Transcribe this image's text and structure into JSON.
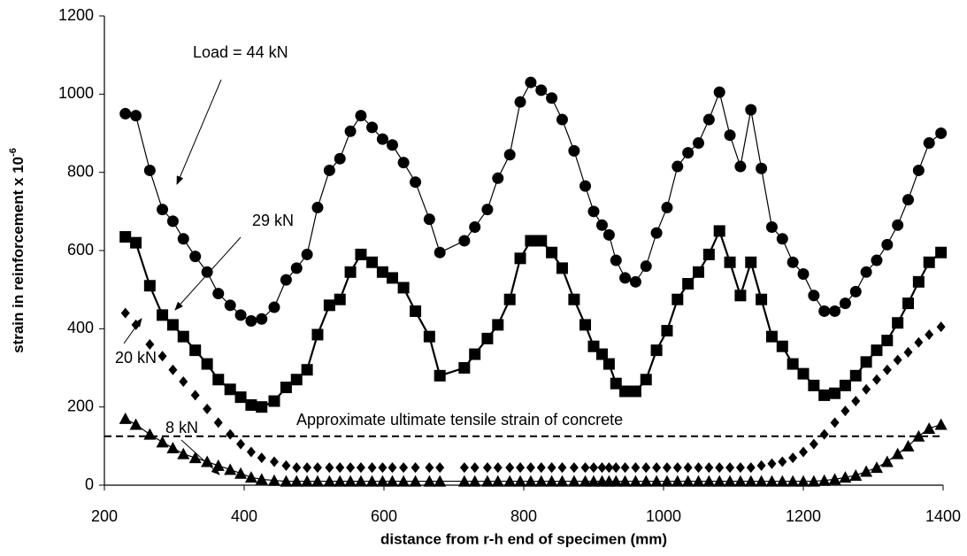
{
  "chart_data": {
    "type": "scatter",
    "x_label": "distance from r-h end of specimen (mm)",
    "y_label": "strain in reinforcement x 10",
    "y_label_superscript": "-6",
    "xlim": [
      200,
      1400
    ],
    "xticks": [
      200,
      400,
      600,
      800,
      1000,
      1200,
      1400
    ],
    "ylim": [
      0,
      1200
    ],
    "yticks": [
      0,
      200,
      400,
      600,
      800,
      1000,
      1200
    ],
    "grid": false,
    "reference_line": {
      "value": 125,
      "label": "Approximate ultimate tensile strain of concrete"
    },
    "series": [
      {
        "name": "Load = 44 kN",
        "color": "#000000",
        "marker": "circle",
        "line": true,
        "x": [
          230,
          245,
          265,
          283,
          298,
          313,
          330,
          347,
          363,
          380,
          395,
          410,
          425,
          443,
          460,
          475,
          490,
          505,
          522,
          537,
          552,
          567,
          583,
          598,
          612,
          628,
          645,
          665,
          680,
          715,
          730,
          748,
          763,
          780,
          795,
          810,
          825,
          840,
          855,
          872,
          888,
          900,
          912,
          922,
          932,
          945,
          960,
          975,
          990,
          1005,
          1020,
          1035,
          1050,
          1065,
          1080,
          1095,
          1110,
          1125,
          1140,
          1155,
          1170,
          1185,
          1200,
          1215,
          1230,
          1245,
          1260,
          1275,
          1290,
          1305,
          1320,
          1335,
          1350,
          1365,
          1380,
          1397
        ],
        "values": [
          950,
          945,
          805,
          705,
          675,
          630,
          585,
          545,
          490,
          460,
          435,
          420,
          425,
          455,
          525,
          555,
          590,
          710,
          805,
          835,
          905,
          945,
          915,
          885,
          870,
          825,
          775,
          680,
          595,
          625,
          660,
          705,
          785,
          845,
          980,
          1030,
          1010,
          990,
          935,
          855,
          765,
          700,
          665,
          640,
          575,
          530,
          520,
          560,
          645,
          710,
          815,
          850,
          875,
          935,
          1005,
          895,
          815,
          960,
          810,
          660,
          630,
          570,
          540,
          485,
          445,
          445,
          465,
          495,
          545,
          575,
          615,
          665,
          730,
          805,
          875,
          900
        ]
      },
      {
        "name": "29 kN",
        "color": "#000000",
        "marker": "square",
        "line": true,
        "x": [
          230,
          245,
          265,
          283,
          298,
          313,
          330,
          347,
          363,
          380,
          395,
          410,
          425,
          443,
          460,
          475,
          490,
          505,
          522,
          537,
          552,
          567,
          583,
          598,
          612,
          628,
          645,
          665,
          680,
          715,
          730,
          748,
          763,
          780,
          795,
          810,
          825,
          840,
          855,
          872,
          888,
          900,
          912,
          922,
          932,
          945,
          960,
          975,
          990,
          1005,
          1020,
          1035,
          1050,
          1065,
          1080,
          1095,
          1110,
          1125,
          1140,
          1155,
          1170,
          1185,
          1200,
          1215,
          1230,
          1245,
          1260,
          1275,
          1290,
          1305,
          1320,
          1335,
          1350,
          1365,
          1380,
          1397
        ],
        "values": [
          635,
          620,
          510,
          435,
          410,
          380,
          345,
          310,
          270,
          245,
          225,
          205,
          200,
          215,
          250,
          270,
          295,
          385,
          460,
          475,
          545,
          590,
          570,
          545,
          530,
          505,
          445,
          380,
          280,
          300,
          335,
          375,
          410,
          475,
          580,
          625,
          625,
          595,
          555,
          475,
          410,
          355,
          335,
          310,
          260,
          240,
          240,
          270,
          345,
          395,
          475,
          515,
          545,
          590,
          650,
          570,
          485,
          570,
          475,
          380,
          355,
          310,
          285,
          255,
          230,
          235,
          255,
          280,
          315,
          345,
          370,
          415,
          465,
          520,
          570,
          595
        ]
      },
      {
        "name": "20 kN",
        "color": "#000000",
        "marker": "diamond",
        "line": false,
        "x": [
          230,
          245,
          265,
          283,
          298,
          313,
          330,
          347,
          363,
          380,
          395,
          410,
          425,
          443,
          460,
          475,
          490,
          505,
          522,
          537,
          552,
          567,
          583,
          598,
          612,
          628,
          645,
          665,
          680,
          715,
          730,
          748,
          763,
          780,
          795,
          810,
          825,
          840,
          855,
          872,
          888,
          900,
          912,
          922,
          932,
          945,
          960,
          975,
          990,
          1005,
          1020,
          1035,
          1050,
          1065,
          1080,
          1095,
          1110,
          1125,
          1140,
          1155,
          1170,
          1185,
          1200,
          1215,
          1230,
          1245,
          1260,
          1275,
          1290,
          1305,
          1320,
          1335,
          1350,
          1365,
          1380,
          1397
        ],
        "values": [
          440,
          410,
          360,
          330,
          295,
          265,
          230,
          195,
          160,
          130,
          105,
          85,
          70,
          60,
          50,
          45,
          45,
          45,
          45,
          45,
          45,
          45,
          45,
          45,
          45,
          45,
          45,
          45,
          45,
          45,
          45,
          45,
          45,
          45,
          45,
          45,
          45,
          45,
          45,
          45,
          45,
          45,
          45,
          45,
          45,
          45,
          45,
          45,
          45,
          45,
          45,
          45,
          45,
          45,
          45,
          45,
          45,
          45,
          50,
          55,
          60,
          70,
          85,
          105,
          130,
          160,
          190,
          215,
          245,
          270,
          295,
          320,
          340,
          365,
          385,
          405
        ]
      },
      {
        "name": "8 kN",
        "color": "#000000",
        "marker": "triangle",
        "line": true,
        "x": [
          230,
          245,
          265,
          283,
          298,
          313,
          330,
          347,
          363,
          380,
          395,
          410,
          425,
          443,
          460,
          475,
          490,
          505,
          522,
          537,
          552,
          567,
          583,
          598,
          612,
          628,
          645,
          665,
          680,
          715,
          730,
          748,
          763,
          780,
          795,
          810,
          825,
          840,
          855,
          872,
          888,
          900,
          912,
          922,
          932,
          945,
          960,
          975,
          990,
          1005,
          1020,
          1035,
          1050,
          1065,
          1080,
          1095,
          1110,
          1125,
          1140,
          1155,
          1170,
          1185,
          1200,
          1215,
          1230,
          1245,
          1260,
          1275,
          1290,
          1305,
          1320,
          1335,
          1350,
          1365,
          1380,
          1397
        ],
        "values": [
          170,
          155,
          130,
          110,
          95,
          80,
          70,
          60,
          50,
          40,
          30,
          20,
          15,
          12,
          10,
          10,
          10,
          10,
          10,
          10,
          10,
          10,
          10,
          10,
          10,
          10,
          10,
          10,
          10,
          10,
          10,
          10,
          10,
          10,
          10,
          10,
          10,
          10,
          10,
          10,
          10,
          10,
          10,
          10,
          10,
          10,
          10,
          10,
          10,
          10,
          10,
          10,
          10,
          10,
          10,
          10,
          10,
          10,
          10,
          10,
          10,
          10,
          10,
          10,
          12,
          15,
          20,
          25,
          35,
          45,
          60,
          80,
          100,
          125,
          145,
          155
        ]
      }
    ]
  }
}
